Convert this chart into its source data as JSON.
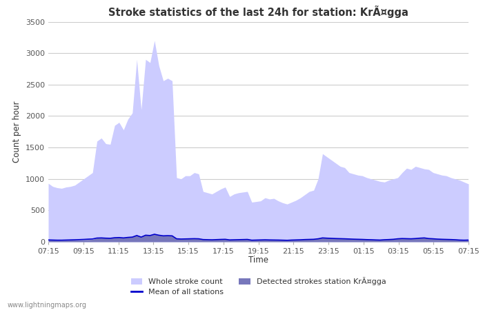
{
  "title": "Stroke statistics of the last 24h for station: KrÃ¤gga",
  "xlabel": "Time",
  "ylabel": "Count per hour",
  "watermark": "www.lightningmaps.org",
  "ylim": [
    0,
    3500
  ],
  "yticks": [
    0,
    500,
    1000,
    1500,
    2000,
    2500,
    3000,
    3500
  ],
  "xtick_labels": [
    "07:15",
    "09:15",
    "11:15",
    "13:15",
    "15:15",
    "17:15",
    "19:15",
    "21:15",
    "23:15",
    "01:15",
    "03:15",
    "05:15",
    "07:15"
  ],
  "whole_stroke": [
    930,
    880,
    860,
    850,
    870,
    880,
    900,
    950,
    1000,
    1050,
    1100,
    1600,
    1650,
    1560,
    1550,
    1850,
    1900,
    1780,
    1950,
    2050,
    2900,
    2100,
    2900,
    2850,
    3200,
    2800,
    2560,
    2600,
    2560,
    1020,
    1000,
    1050,
    1050,
    1100,
    1080,
    800,
    780,
    760,
    800,
    840,
    870,
    720,
    760,
    780,
    790,
    800,
    630,
    640,
    650,
    700,
    680,
    690,
    650,
    620,
    600,
    630,
    660,
    700,
    750,
    800,
    820,
    1000,
    1400,
    1350,
    1300,
    1250,
    1200,
    1180,
    1100,
    1080,
    1060,
    1050,
    1020,
    1000,
    980,
    960,
    950,
    980,
    1000,
    1020,
    1100,
    1170,
    1150,
    1200,
    1180,
    1160,
    1150,
    1100,
    1080,
    1060,
    1050,
    1020,
    1000,
    980,
    950,
    920
  ],
  "detected_strokes": [
    30,
    28,
    25,
    25,
    26,
    27,
    28,
    30,
    32,
    35,
    38,
    60,
    65,
    60,
    58,
    70,
    72,
    68,
    75,
    80,
    110,
    80,
    110,
    105,
    120,
    108,
    98,
    100,
    98,
    50,
    45,
    48,
    50,
    52,
    50,
    38,
    36,
    34,
    38,
    40,
    42,
    32,
    34,
    36,
    38,
    40,
    28,
    30,
    32,
    35,
    32,
    31,
    30,
    28,
    26,
    30,
    32,
    35,
    38,
    40,
    42,
    50,
    65,
    60,
    58,
    55,
    52,
    50,
    48,
    45,
    42,
    40,
    38,
    35,
    32,
    30,
    35,
    38,
    42,
    50,
    55,
    52,
    50,
    55,
    60,
    65,
    55,
    50,
    45,
    42,
    40,
    38,
    35,
    30,
    28,
    30
  ],
  "mean_all": [
    30,
    28,
    26,
    26,
    28,
    30,
    32,
    35,
    38,
    42,
    45,
    60,
    62,
    58,
    56,
    65,
    68,
    62,
    70,
    75,
    100,
    75,
    105,
    100,
    120,
    105,
    95,
    98,
    95,
    48,
    44,
    46,
    48,
    50,
    48,
    36,
    34,
    32,
    35,
    38,
    40,
    30,
    32,
    34,
    36,
    38,
    26,
    28,
    30,
    32,
    30,
    29,
    28,
    26,
    24,
    28,
    30,
    32,
    36,
    38,
    40,
    48,
    62,
    58,
    55,
    52,
    50,
    48,
    45,
    42,
    40,
    38,
    35,
    33,
    30,
    28,
    33,
    36,
    40,
    48,
    52,
    50,
    48,
    52,
    58,
    62,
    52,
    48,
    43,
    40,
    38,
    36,
    33,
    28,
    26,
    28
  ],
  "whole_color": "#ccccff",
  "detected_color": "#7777bb",
  "mean_color": "#0000cc",
  "bg_color": "#ffffff",
  "grid_color": "#cccccc",
  "title_color": "#333333",
  "label_color": "#333333",
  "tick_color": "#555555",
  "legend_labels": [
    "Whole stroke count",
    "Mean of all stations",
    "Detected strokes station KrÃ¤gga"
  ]
}
